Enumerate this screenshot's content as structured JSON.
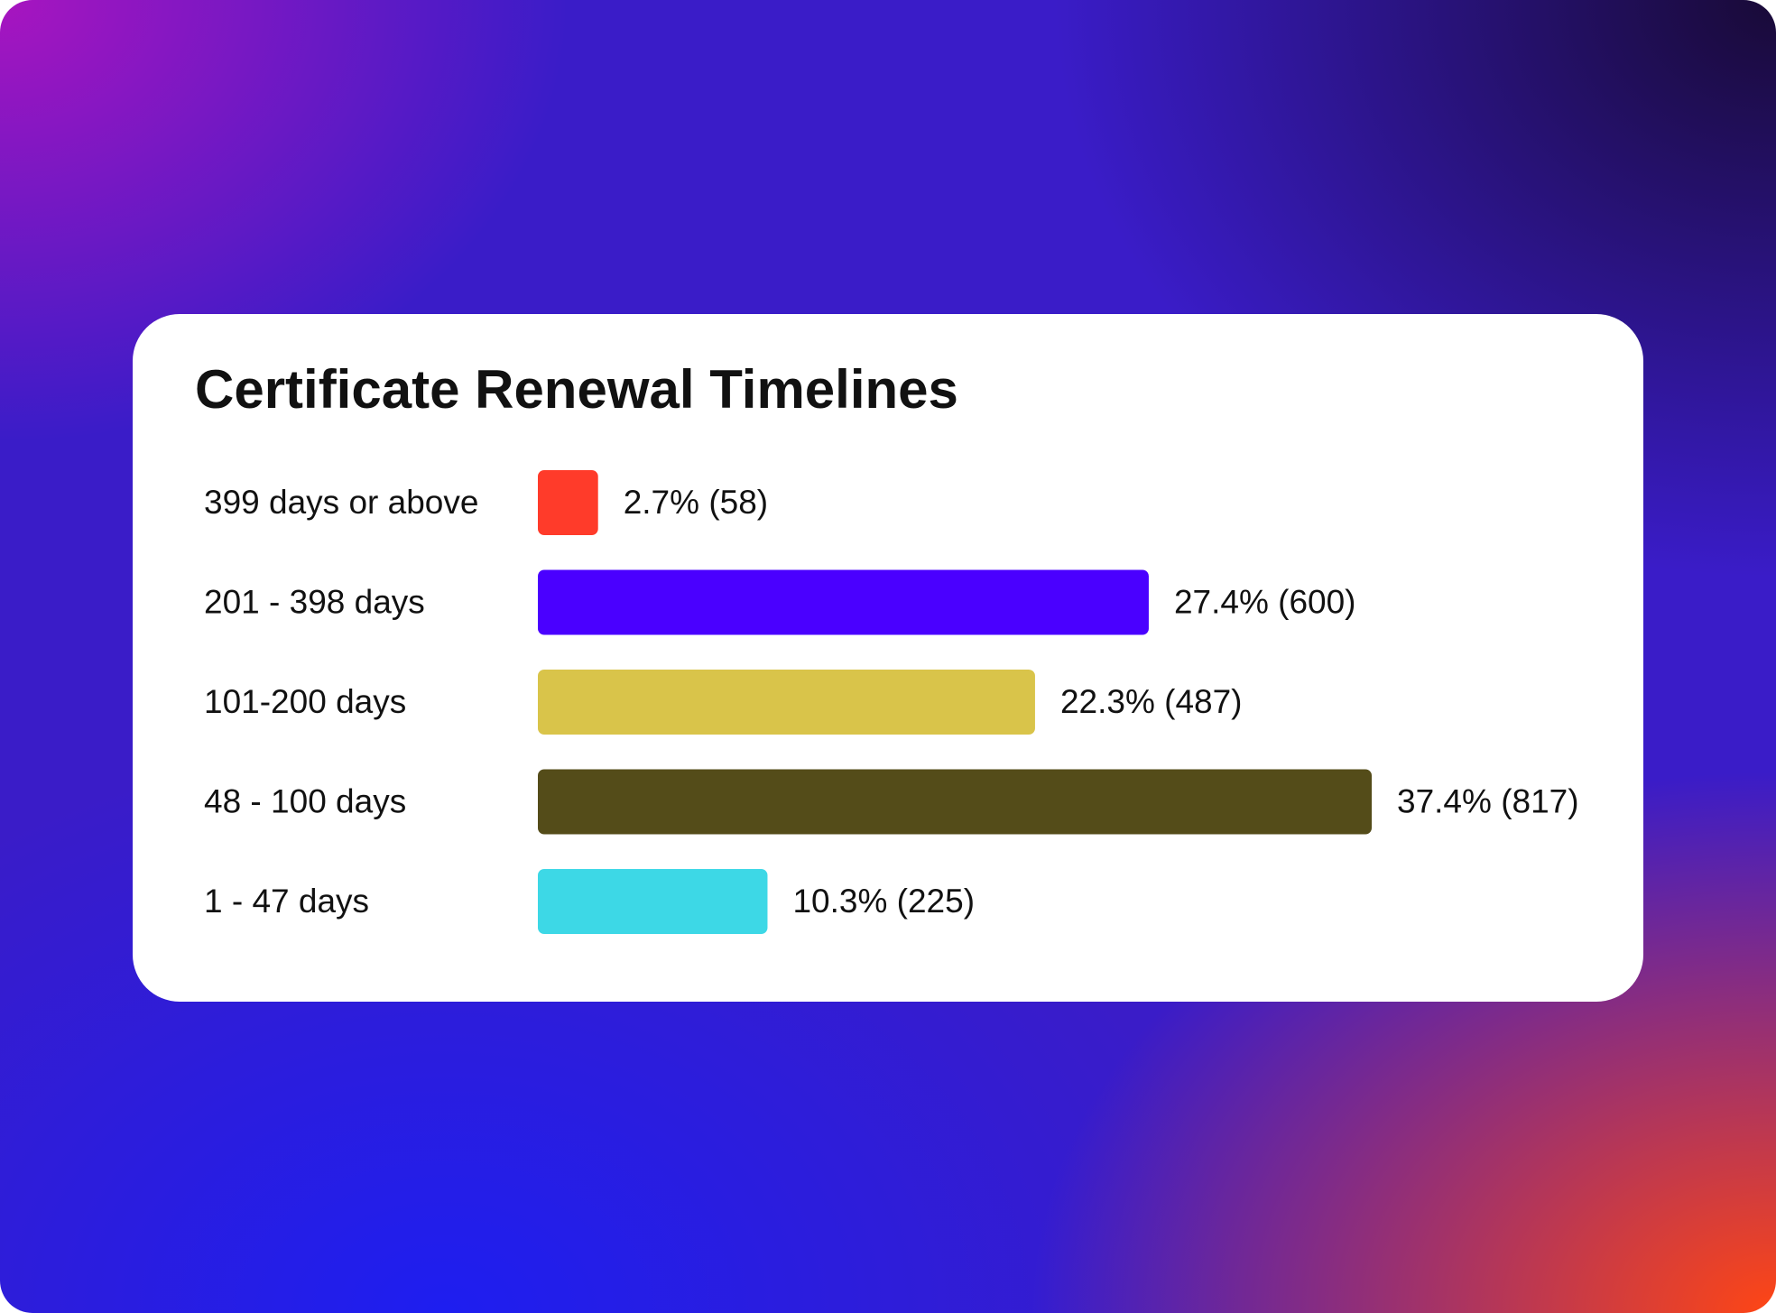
{
  "chart_data": {
    "type": "bar",
    "orientation": "horizontal",
    "title": "Certificate Renewal Timelines",
    "categories": [
      "399 days or above",
      "201 - 398 days",
      "101-200 days",
      "48 - 100 days",
      "1 - 47 days"
    ],
    "values": [
      2.7,
      27.4,
      22.3,
      37.4,
      10.3
    ],
    "value_labels": [
      "2.7% (58)",
      "27.4% (600)",
      "22.3% (487)",
      "37.4% (817)",
      "10.3% (225)"
    ],
    "colors": [
      "#ff3b2a",
      "#4a00ff",
      "#d9c44a",
      "#544c19",
      "#3dd8e6"
    ]
  }
}
